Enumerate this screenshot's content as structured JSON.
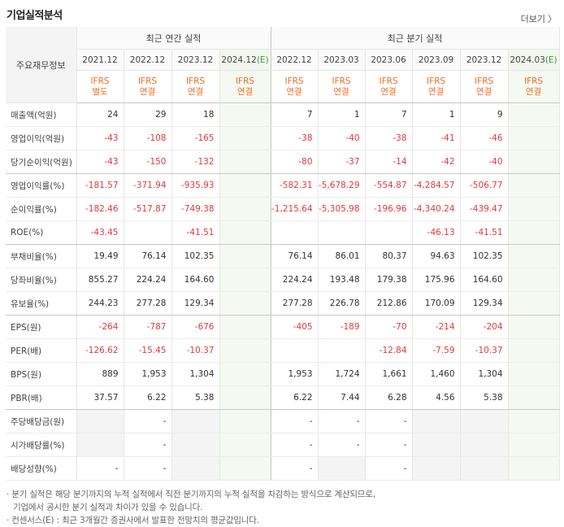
{
  "section_title": "기업실적분석",
  "more_link": "더보기",
  "more_arrow": "〉",
  "header": {
    "row_label": "주요재무정보",
    "annual_group": "최근 연간 실적",
    "quarter_group": "최근 분기 실적",
    "columns": [
      {
        "period": "2021.12",
        "est": false,
        "ifrs": "IFRS",
        "basis": "별도"
      },
      {
        "period": "2022.12",
        "est": false,
        "ifrs": "IFRS",
        "basis": "연결"
      },
      {
        "period": "2023.12",
        "est": false,
        "ifrs": "IFRS",
        "basis": "연결"
      },
      {
        "period": "2024.12",
        "suffix": "(E)",
        "est": true,
        "ifrs": "IFRS",
        "basis": "연결"
      },
      {
        "period": "2022.12",
        "est": false,
        "ifrs": "IFRS",
        "basis": "연결"
      },
      {
        "period": "2023.03",
        "est": false,
        "ifrs": "IFRS",
        "basis": "연결"
      },
      {
        "period": "2023.06",
        "est": false,
        "ifrs": "IFRS",
        "basis": "연결"
      },
      {
        "period": "2023.09",
        "est": false,
        "ifrs": "IFRS",
        "basis": "연결"
      },
      {
        "period": "2023.12",
        "est": false,
        "ifrs": "IFRS",
        "basis": "연결"
      },
      {
        "period": "2024.03",
        "suffix": "(E)",
        "est": true,
        "ifrs": "IFRS",
        "basis": "연결"
      }
    ]
  },
  "rows": [
    {
      "label": "매출액(억원)",
      "values": [
        "24",
        "29",
        "18",
        "",
        "7",
        "1",
        "7",
        "1",
        "9",
        ""
      ]
    },
    {
      "label": "영업이익(억원)",
      "values": [
        "-43",
        "-108",
        "-165",
        "",
        "-38",
        "-40",
        "-38",
        "-41",
        "-46",
        ""
      ]
    },
    {
      "label": "당기순이익(억원)",
      "values": [
        "-43",
        "-150",
        "-132",
        "",
        "-80",
        "-37",
        "-14",
        "-42",
        "-40",
        ""
      ],
      "sep": true
    },
    {
      "label": "영업이익률(%)",
      "values": [
        "-181.57",
        "-371.94",
        "-935.93",
        "",
        "-582.31",
        "-5,678.29",
        "-554.87",
        "-4,284.57",
        "-506.77",
        ""
      ]
    },
    {
      "label": "순이익률(%)",
      "values": [
        "-182.46",
        "-517.87",
        "-749.38",
        "",
        "-1,215.64",
        "-5,305.98",
        "-196.96",
        "-4,340.24",
        "-439.47",
        ""
      ]
    },
    {
      "label": "ROE(%)",
      "values": [
        "-43.45",
        "",
        "-41.51",
        "",
        "",
        "",
        "",
        "-46.13",
        "-41.51",
        ""
      ],
      "sep": true
    },
    {
      "label": "부채비율(%)",
      "values": [
        "19.49",
        "76.14",
        "102.35",
        "",
        "76.14",
        "86.01",
        "80.37",
        "94.63",
        "102.35",
        ""
      ]
    },
    {
      "label": "당좌비율(%)",
      "values": [
        "855.27",
        "224.24",
        "164.60",
        "",
        "224.24",
        "193.48",
        "179.38",
        "175.96",
        "164.60",
        ""
      ]
    },
    {
      "label": "유보율(%)",
      "values": [
        "244.23",
        "277.28",
        "129.34",
        "",
        "277.28",
        "226.78",
        "212.86",
        "170.09",
        "129.34",
        ""
      ],
      "sep": true
    },
    {
      "label": "EPS(원)",
      "values": [
        "-264",
        "-787",
        "-676",
        "",
        "-405",
        "-189",
        "-70",
        "-214",
        "-204",
        ""
      ]
    },
    {
      "label": "PER(배)",
      "values": [
        "-126.62",
        "-15.45",
        "-10.37",
        "",
        "",
        "",
        "-12.84",
        "-7.59",
        "-10.37",
        ""
      ]
    },
    {
      "label": "BPS(원)",
      "values": [
        "889",
        "1,953",
        "1,304",
        "",
        "1,953",
        "1,724",
        "1,661",
        "1,460",
        "1,304",
        ""
      ]
    },
    {
      "label": "PBR(배)",
      "values": [
        "37.57",
        "6.22",
        "5.38",
        "",
        "6.22",
        "7.44",
        "6.28",
        "4.56",
        "5.38",
        ""
      ],
      "sep": true
    },
    {
      "label": "주당배당금(원)",
      "values": [
        "",
        "-",
        "",
        "",
        "-",
        "-",
        "-",
        "",
        "",
        " "
      ],
      "blank": [
        0,
        2,
        7,
        8
      ]
    },
    {
      "label": "시가배당률(%)",
      "values": [
        "",
        "-",
        "",
        "",
        "-",
        "-",
        "-",
        "",
        "",
        " "
      ],
      "blank": [
        0,
        2,
        7,
        8
      ]
    },
    {
      "label": "배당성향(%)",
      "values": [
        "-",
        "-",
        "",
        "",
        "-",
        "",
        "-",
        "",
        "",
        " "
      ],
      "blank": [
        2,
        5,
        7,
        8
      ]
    }
  ],
  "notes": [
    "· 분기 실적은 해당 분기까지의 누적 실적에서 직전 분기까지의 누적 실적을 차감하는 방식으로 계산되므로,",
    "기업에서 공시한 분기 실적과 차이가 있을 수 있습니다.",
    "· 컨센서스(E) : 최근 3개월간 증권사에서 발표한 전망치의 평균값입니다."
  ]
}
